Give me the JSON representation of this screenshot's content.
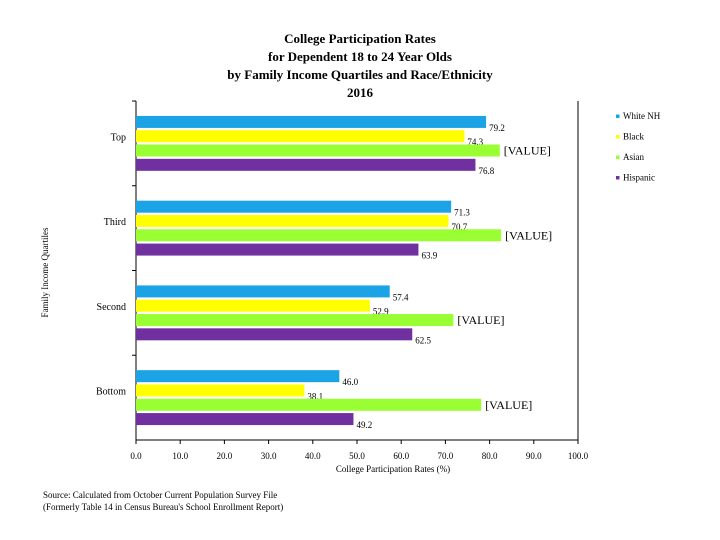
{
  "chart_data": {
    "type": "bar",
    "orientation": "horizontal",
    "title": [
      "College Participation Rates",
      "for Dependent 18 to 24 Year Olds",
      "by Family Income Quartiles and Race/Ethnicity",
      "2016"
    ],
    "xlabel": "College Participation Rates (%)",
    "ylabel": "Family Income Quartiles",
    "xlim": [
      0,
      100
    ],
    "xticks": [
      "0.0",
      "10.0",
      "20.0",
      "30.0",
      "40.0",
      "50.0",
      "60.0",
      "70.0",
      "80.0",
      "90.0",
      "100.0"
    ],
    "categories": [
      "Top",
      "Third",
      "Second",
      "Bottom"
    ],
    "legend_position": "right",
    "series": [
      {
        "name": "White NH",
        "color": "#1ba3e6",
        "values": [
          79.2,
          71.3,
          57.4,
          46.0
        ],
        "labels": [
          "79.2",
          "71.3",
          "57.4",
          "46.0"
        ]
      },
      {
        "name": "Black",
        "color": "#ffff00",
        "values": [
          74.3,
          70.7,
          52.9,
          38.1
        ],
        "labels": [
          "74.3",
          "70.7",
          "52.9",
          "38.1"
        ]
      },
      {
        "name": "Asian",
        "color": "#99ff33",
        "values": [
          82.3,
          82.6,
          71.8,
          78.1
        ],
        "labels": [
          "[VALUE]",
          "[VALUE]",
          "[VALUE]",
          "[VALUE]"
        ]
      },
      {
        "name": "Hispanic",
        "color": "#7030a0",
        "values": [
          76.8,
          63.9,
          62.5,
          49.2
        ],
        "labels": [
          "76.8",
          "63.9",
          "62.5",
          "49.2"
        ]
      }
    ]
  },
  "source": {
    "line1": "Source: Calculated from October Current Population Survey File",
    "line2": "(Formerly Table 14 in Census Bureau's School Enrollment Report)"
  }
}
